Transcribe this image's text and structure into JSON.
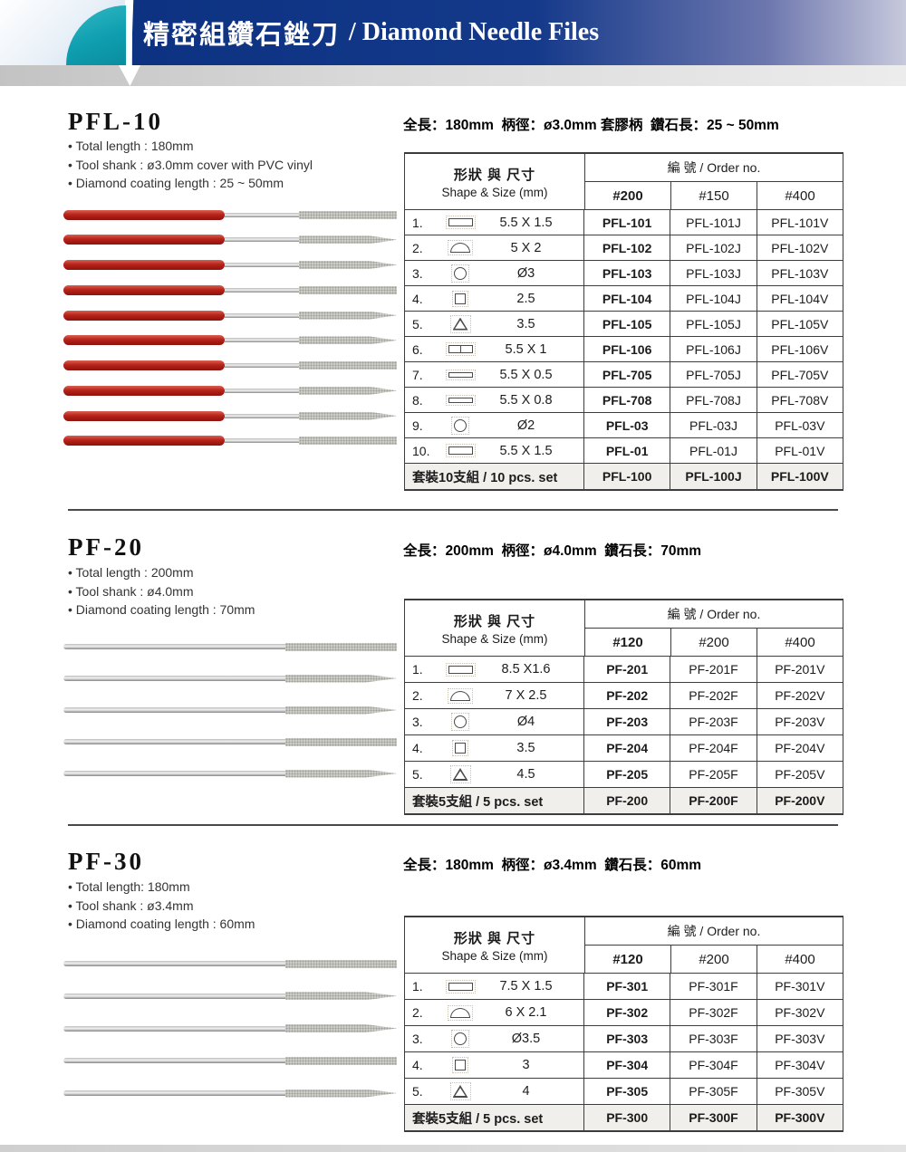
{
  "header": {
    "title_zh": "精密組鑽石銼刀",
    "title_en": "/ Diamond Needle Files",
    "banner_color_left": "#0d3282",
    "banner_color_right": "#c7c9dc",
    "teal_color": "#0f9fb0"
  },
  "table_labels": {
    "shape_zh": "形狀 與 尺寸",
    "shape_en": "Shape & Size (mm)",
    "order_no": "編 號 / Order no."
  },
  "colors": {
    "handle_red": "#b82319",
    "footer_row_bg": "#f0efeb"
  },
  "sections": [
    {
      "id": "pfl-10",
      "title": "PFL-10",
      "bullets": [
        "Total length : 180mm",
        "Tool shank : ø3.0mm cover with PVC vinyl",
        "Diamond coating length : 25 ~ 50mm"
      ],
      "spec": "全長：180mm  柄徑：ø3.0mm 套膠柄  鑽石長：25 ~ 50mm",
      "grits": [
        "#200",
        "#150",
        "#400"
      ],
      "rows": [
        {
          "no": "1.",
          "shape": "rect",
          "size": "5.5 X 1.5",
          "orders": [
            "PFL-101",
            "PFL-101J",
            "PFL-101V"
          ]
        },
        {
          "no": "2.",
          "shape": "half",
          "size": "5 X 2",
          "orders": [
            "PFL-102",
            "PFL-102J",
            "PFL-102V"
          ]
        },
        {
          "no": "3.",
          "shape": "circle",
          "size": "Ø3",
          "orders": [
            "PFL-103",
            "PFL-103J",
            "PFL-103V"
          ]
        },
        {
          "no": "4.",
          "shape": "square",
          "size": "2.5",
          "orders": [
            "PFL-104",
            "PFL-104J",
            "PFL-104V"
          ]
        },
        {
          "no": "5.",
          "shape": "triangle",
          "size": "3.5",
          "orders": [
            "PFL-105",
            "PFL-105J",
            "PFL-105V"
          ]
        },
        {
          "no": "6.",
          "shape": "rect2",
          "size": "5.5 X 1",
          "orders": [
            "PFL-106",
            "PFL-106J",
            "PFL-106V"
          ]
        },
        {
          "no": "7.",
          "shape": "rect-thin",
          "size": "5.5 X 0.5",
          "orders": [
            "PFL-705",
            "PFL-705J",
            "PFL-705V"
          ]
        },
        {
          "no": "8.",
          "shape": "rect-thin",
          "size": "5.5 X 0.8",
          "orders": [
            "PFL-708",
            "PFL-708J",
            "PFL-708V"
          ]
        },
        {
          "no": "9.",
          "shape": "circle",
          "size": "Ø2",
          "orders": [
            "PFL-03",
            "PFL-03J",
            "PFL-03V"
          ]
        },
        {
          "no": "10.",
          "shape": "rect",
          "size": "5.5 X 1.5",
          "orders": [
            "PFL-01",
            "PFL-01J",
            "PFL-01V"
          ]
        }
      ],
      "footer": {
        "label": "套裝10支組 / 10 pcs. set",
        "orders": [
          "PFL-100",
          "PFL-100J",
          "PFL-100V"
        ]
      },
      "image": {
        "files": 10,
        "handle": "red"
      }
    },
    {
      "id": "pf-20",
      "title": "PF-20",
      "bullets": [
        "Total length : 200mm",
        "Tool shank : ø4.0mm",
        "Diamond coating length : 70mm"
      ],
      "spec": "全長：200mm  柄徑：ø4.0mm  鑽石長：70mm",
      "grits": [
        "#120",
        "#200",
        "#400"
      ],
      "rows": [
        {
          "no": "1.",
          "shape": "rect",
          "size": "8.5 X1.6",
          "orders": [
            "PF-201",
            "PF-201F",
            "PF-201V"
          ]
        },
        {
          "no": "2.",
          "shape": "half",
          "size": "7 X 2.5",
          "orders": [
            "PF-202",
            "PF-202F",
            "PF-202V"
          ]
        },
        {
          "no": "3.",
          "shape": "circle",
          "size": "Ø4",
          "orders": [
            "PF-203",
            "PF-203F",
            "PF-203V"
          ]
        },
        {
          "no": "4.",
          "shape": "square",
          "size": "3.5",
          "orders": [
            "PF-204",
            "PF-204F",
            "PF-204V"
          ]
        },
        {
          "no": "5.",
          "shape": "triangle",
          "size": "4.5",
          "orders": [
            "PF-205",
            "PF-205F",
            "PF-205V"
          ]
        }
      ],
      "footer": {
        "label": "套裝5支組 / 5 pcs. set",
        "orders": [
          "PF-200",
          "PF-200F",
          "PF-200V"
        ]
      },
      "image": {
        "files": 5,
        "handle": "metal"
      }
    },
    {
      "id": "pf-30",
      "title": "PF-30",
      "bullets": [
        "Total length: 180mm",
        "Tool shank : ø3.4mm",
        "Diamond coating length : 60mm"
      ],
      "spec": "全長：180mm  柄徑：ø3.4mm  鑽石長：60mm",
      "grits": [
        "#120",
        "#200",
        "#400"
      ],
      "rows": [
        {
          "no": "1.",
          "shape": "rect",
          "size": "7.5 X 1.5",
          "orders": [
            "PF-301",
            "PF-301F",
            "PF-301V"
          ]
        },
        {
          "no": "2.",
          "shape": "half",
          "size": "6 X 2.1",
          "orders": [
            "PF-302",
            "PF-302F",
            "PF-302V"
          ]
        },
        {
          "no": "3.",
          "shape": "circle",
          "size": "Ø3.5",
          "orders": [
            "PF-303",
            "PF-303F",
            "PF-303V"
          ]
        },
        {
          "no": "4.",
          "shape": "square",
          "size": "3",
          "orders": [
            "PF-304",
            "PF-304F",
            "PF-304V"
          ]
        },
        {
          "no": "5.",
          "shape": "triangle",
          "size": "4",
          "orders": [
            "PF-305",
            "PF-305F",
            "PF-305V"
          ]
        }
      ],
      "footer": {
        "label": "套裝5支組 / 5 pcs. set",
        "orders": [
          "PF-300",
          "PF-300F",
          "PF-300V"
        ]
      },
      "image": {
        "files": 5,
        "handle": "metal"
      }
    }
  ]
}
